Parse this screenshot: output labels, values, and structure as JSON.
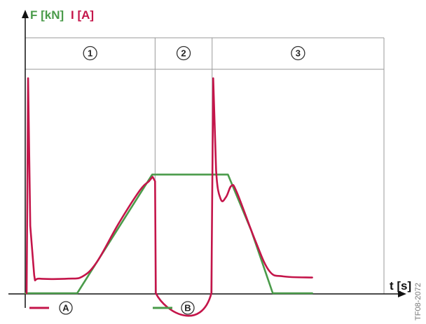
{
  "chart_data": {
    "type": "line",
    "y_label_force": "F [kN]",
    "y_label_current": "I [A]",
    "xlabel": "t [s]",
    "phases": [
      {
        "label": "1",
        "x_start": 0.0,
        "x_end": 0.362
      },
      {
        "label": "2",
        "x_start": 0.362,
        "x_end": 0.521
      },
      {
        "label": "3",
        "x_start": 0.521,
        "x_end": 1.0
      }
    ],
    "xlim": [
      0,
      1
    ],
    "ylim": [
      0,
      1
    ],
    "series": [
      {
        "name": "A",
        "color": "#c4154a",
        "points": [
          [
            0.004,
            0.0
          ],
          [
            0.008,
            0.96
          ],
          [
            0.014,
            0.3
          ],
          [
            0.025,
            0.08
          ],
          [
            0.04,
            0.065
          ],
          [
            0.12,
            0.065
          ],
          [
            0.16,
            0.075
          ],
          [
            0.2,
            0.14
          ],
          [
            0.26,
            0.31
          ],
          [
            0.32,
            0.46
          ],
          [
            0.345,
            0.5
          ],
          [
            0.355,
            0.52
          ],
          [
            0.362,
            0.5
          ],
          [
            0.364,
            0.0
          ],
          [
            0.519,
            0.0
          ],
          [
            0.524,
            0.96
          ],
          [
            0.532,
            0.55
          ],
          [
            0.545,
            0.42
          ],
          [
            0.56,
            0.43
          ],
          [
            0.575,
            0.48
          ],
          [
            0.59,
            0.45
          ],
          [
            0.64,
            0.24
          ],
          [
            0.68,
            0.1
          ],
          [
            0.72,
            0.075
          ],
          [
            0.8,
            0.07
          ]
        ]
      },
      {
        "name": "B",
        "color": "#4a9b4a",
        "points": [
          [
            0.0,
            0.0
          ],
          [
            0.145,
            0.0
          ],
          [
            0.354,
            0.53
          ],
          [
            0.565,
            0.53
          ],
          [
            0.63,
            0.28
          ],
          [
            0.69,
            0.0
          ],
          [
            0.8,
            0.0
          ]
        ]
      }
    ],
    "legend": [
      "A",
      "B"
    ],
    "image_code": "TF08-2072",
    "colors": {
      "current": "#c4154a",
      "force": "#4a9b4a",
      "phase_lines": "#999999",
      "axis": "#111111"
    }
  }
}
